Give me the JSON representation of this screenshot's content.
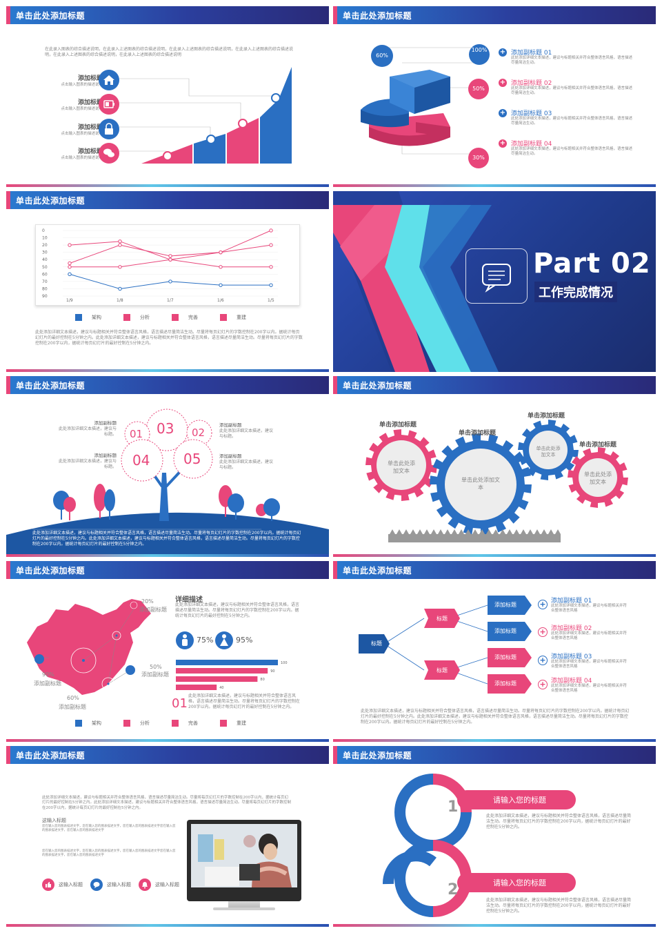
{
  "header_title": "单击此处添加标题",
  "colors": {
    "blue": "#2a6fc2",
    "pink": "#e8467a",
    "navy": "#2b3f9e",
    "cyan": "#5fc6e8"
  },
  "slide1": {
    "desc": "在此录入图表的综合描述说明，在此录入上述图表的综合描述说明，在此录入上述图表的综合描述说明，在此录入上述图表的综合描述说明，在此录入上述图表的综合描述说明，在此录入上述图表的综合描述说明",
    "items": [
      {
        "title": "添加标题",
        "sub": "点击输入图表的描述说明",
        "icon": "home-icon",
        "color": "#2a6fc2"
      },
      {
        "title": "添加标题",
        "sub": "点击输入图表的描述说明",
        "icon": "battery-icon",
        "color": "#e8467a"
      },
      {
        "title": "添加标题",
        "sub": "点击输入图表的描述说明",
        "icon": "lock-icon",
        "color": "#2a6fc2"
      },
      {
        "title": "添加标题",
        "sub": "点击输入图表的描述说明",
        "icon": "chat-icon",
        "color": "#e8467a"
      }
    ]
  },
  "slide2": {
    "labels": [
      "60%",
      "100%",
      "50%",
      "30%"
    ],
    "items": [
      {
        "title": "添加副标题 01",
        "desc": "此处添加详细文本描述，建议与标题相关并符合整体语言风格，语言描述尽量简洁生动。",
        "color": "#2a6fc2"
      },
      {
        "title": "添加副标题 02",
        "desc": "此处添加详细文本描述，建议与标题相关并符合整体语言风格，语言描述尽量简洁生动。",
        "color": "#e8467a"
      },
      {
        "title": "添加副标题 03",
        "desc": "此处添加详细文本描述，建议与标题相关并符合整体语言风格，语言描述尽量简洁生动。",
        "color": "#2a6fc2"
      },
      {
        "title": "添加副标题 04",
        "desc": "此处添加详细文本描述，建议与标题相关并符合整体语言风格，语言描述尽量简洁生动。",
        "color": "#e8467a"
      }
    ]
  },
  "slide3": {
    "chart_data": {
      "type": "line",
      "x": [
        "1/9",
        "1/8",
        "1/7",
        "1/6",
        "1/5"
      ],
      "ylim": [
        0,
        90
      ],
      "yticks": [
        0,
        10,
        20,
        30,
        40,
        50,
        60,
        70,
        80,
        90
      ],
      "y_inverted": true,
      "series": [
        {
          "name": "架构",
          "color": "#2a6fc2",
          "values": [
            60,
            80,
            70,
            75,
            75
          ]
        },
        {
          "name": "分析",
          "color": "#e8467a",
          "values": [
            20,
            15,
            40,
            30,
            0
          ]
        },
        {
          "name": "完善",
          "color": "#e8467a",
          "values": [
            45,
            20,
            35,
            30,
            20
          ]
        },
        {
          "name": "重建",
          "color": "#e8467a",
          "values": [
            50,
            50,
            40,
            50,
            50
          ]
        }
      ]
    },
    "desc": "此处添加详细文本描述，建议与标题相关并符合整体语言风格，语言描述尽量简洁生动。尽量将每页幻灯片的字数控制在200字以内。据统计每页幻灯片的最好控制在5分钟之内。此处添加详细文本描述，建议与标题相关并符合整体语言风格，语言描述尽量简洁生动。尽量将每页幻灯片的字数控制在200字以内，据统计每页幻灯片的最好控制在5分钟之内。"
  },
  "slide4": {
    "part": "Part 02",
    "subtitle": "工作完成情况"
  },
  "slide5": {
    "nums": [
      "03",
      "01",
      "02",
      "04",
      "05"
    ],
    "left_items": [
      {
        "title": "添加副标题",
        "desc": "此处添加详细文本描述，建议与标题。"
      },
      {
        "title": "添加副标题",
        "desc": "此处添加详细文本描述，建议与标题。"
      }
    ],
    "right_items": [
      {
        "title": "添加副标题",
        "desc": "此处添加详细文本描述，建议与标题。"
      },
      {
        "title": "添加副标题",
        "desc": "此处添加详细文本描述，建议与标题。"
      }
    ],
    "desc": "此处添加详细文本描述，建议与标题相关并符合整体语言风格，语言描述尽量简洁生动。尽量将每页幻灯片的字数控制在200字以内。据统计每页幻灯片的最好控制在5分钟之内。此处添加详细文本描述，建议与标题相关并符合整体语言风格，语言描述尽量简洁生动。尽量将每页幻灯片的字数控制在200字以内。据统计每页幻灯片的最好控制在5分钟之内。"
  },
  "slide6": {
    "titles": [
      "单击添加标题",
      "单击添加标题",
      "单击添加标题",
      "单击添加标题"
    ],
    "gear_texts": [
      "单击此处添加文本",
      "单击此处添加文本",
      "单击此处添加文本",
      "单击此处添加文本"
    ]
  },
  "slide7": {
    "legend": [
      "架构",
      "分析",
      "完善",
      "重建"
    ],
    "map_labels": [
      {
        "pct": "20%",
        "label": "添加副标题"
      },
      {
        "pct": "50%",
        "label": "添加副标题"
      },
      {
        "pct": "90%",
        "label": "添加副标题"
      },
      {
        "pct": "60%",
        "label": "添加副标题"
      }
    ],
    "detail_title": "详细描述",
    "detail_desc": "此处添加详细文本描述，建议与标题相关并符合整体语言风格，语言描述尽量简洁生动。尽量将每页幻灯片的字数控制在200字以内。据统计每页幻灯片的最好控制在5分钟之内。",
    "male_pct": "75%",
    "female_pct": "95%",
    "chart_data": {
      "type": "bar",
      "orientation": "horizontal",
      "values": [
        100,
        90,
        80,
        40
      ],
      "colors": [
        "#2a6fc2",
        "#e8467a",
        "#e8467a",
        "#e8467a"
      ],
      "xlim": [
        0,
        100
      ]
    },
    "num": "01",
    "num_desc": "此处添加详细文本描述，建议与标题相关并符合整体语言风格，语言描述尽量简洁生动。尽量将每页幻灯片的字数控制在200字以内。据统计每页幻灯片的最好控制在5分钟之内。"
  },
  "slide8": {
    "root": "标题",
    "mids": [
      "标题",
      "标题"
    ],
    "leaves": [
      "添加标题",
      "添加标题",
      "添加标题",
      "添加标题"
    ],
    "items": [
      {
        "title": "添加副标题 01",
        "desc": "此处添加详细文本描述，建议与标题相关并符合整体语言风格",
        "color": "#2a6fc2"
      },
      {
        "title": "添加副标题 02",
        "desc": "此处添加详细文本描述，建议与标题相关并符合整体语言风格",
        "color": "#e8467a"
      },
      {
        "title": "添加副标题 03",
        "desc": "此处添加详细文本描述，建议与标题相关并符合整体语言风格",
        "color": "#2a6fc2"
      },
      {
        "title": "添加副标题 04",
        "desc": "此处添加详细文本描述，建议与标题相关并符合整体语言风格",
        "color": "#e8467a"
      }
    ],
    "desc": "此处添加详细文本描述，建议与标题相关并符合整体语言风格，语言描述尽量简洁生动。尽量将每页幻灯片的字数控制在200字以内。据统计每页幻灯片的最好控制在5分钟之内。此处添加详细文本描述，建议与标题相关并符合整体语言风格，语言描述尽量简洁生动。尽量将每页幻灯片的字数控制在200字以内。据统计每页幻灯片的最好控制在5分钟之内。"
  },
  "slide9": {
    "desc": "此处添加详细文本描述，建议与标题相关并符合整体语言风格，语言描述尽量简洁生动。尽量将每页幻灯片的字数控制在200字以内，据统计每页幻灯片的最好控制在5分钟之内。此处添加详细文本描述，建议与标题相关并符合整体语言风格，语言描述尽量简洁生动。尽量将每页幻灯片的字数控制在200字以内，据统计每页幻灯片的最好控制在5分钟之内。",
    "sub_title": "这输入标题",
    "sub_desc1": "您在输入您的图表描述文字，您在输入您的图表描述文字，您在输入您的图表描述文字您在输入您的图表描述文字，您在输入您的图表描述文字",
    "sub_desc2": "您在输入您的图表描述文字，您在输入您的图表描述文字，您在输入您的图表描述文字您在输入您的图表描述文字，您在输入您的图表描述文字",
    "icons": [
      {
        "label": "这输入标题",
        "icon": "thumbs-up-icon",
        "color": "#e8467a"
      },
      {
        "label": "这输入标题",
        "icon": "chat-icon",
        "color": "#2a6fc2"
      },
      {
        "label": "这输入标题",
        "icon": "bell-icon",
        "color": "#e8467a"
      }
    ]
  },
  "slide10": {
    "items": [
      {
        "num": "1",
        "title": "请输入您的标题",
        "desc": "此处添加详细文本描述，建议与标题相关并符合整体语言风格，语言描述尽量简洁生动。尽量将每页幻灯片的字数控制在200字以内，据统计每页幻灯片的最好控制在5分钟之内。"
      },
      {
        "num": "2",
        "title": "请输入您的标题",
        "desc": "此处添加详细文本描述，建议与标题相关并符合整体语言风格，语言描述尽量简洁生动。尽量将每页幻灯片的字数控制在200字以内，据统计每页幻灯片的最好控制在5分钟之内。"
      }
    ]
  }
}
